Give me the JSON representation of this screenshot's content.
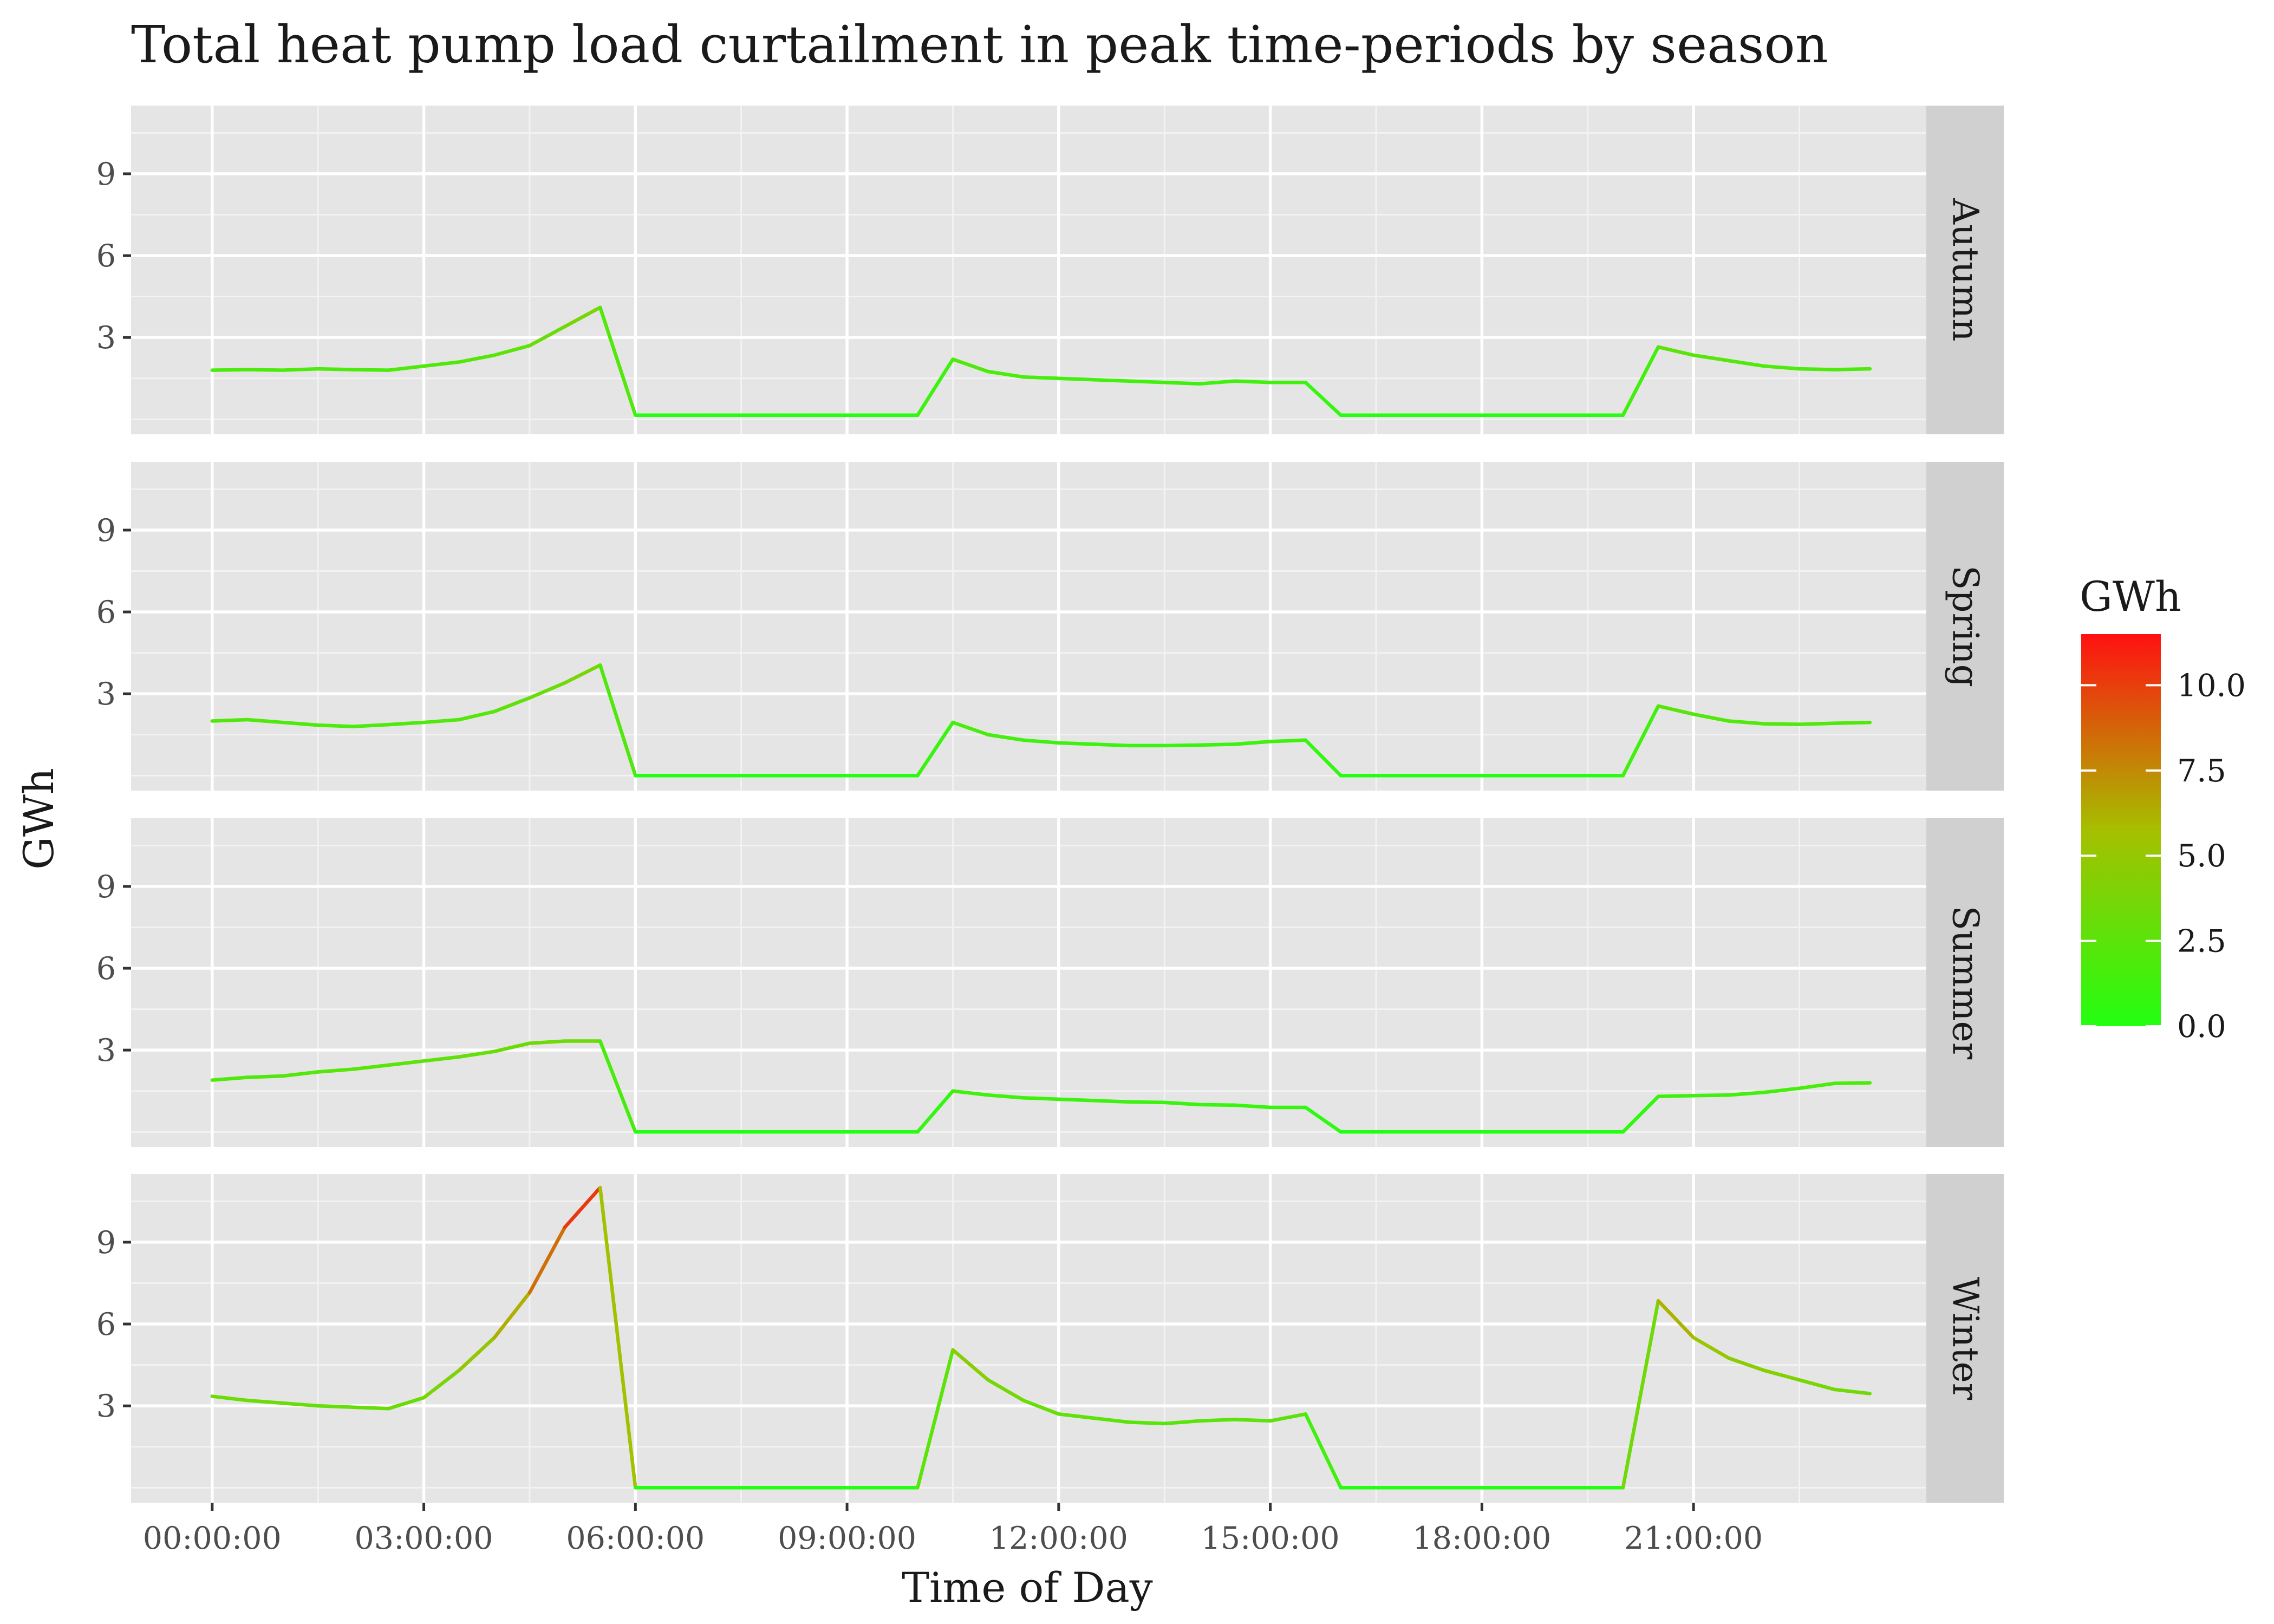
{
  "chart_data": {
    "type": "line",
    "title": "Total heat pump load curtailment in peak time-periods by season",
    "xlabel": "Time of Day",
    "ylabel": "GWh",
    "x_ticks": [
      "00:00:00",
      "03:00:00",
      "06:00:00",
      "09:00:00",
      "12:00:00",
      "15:00:00",
      "18:00:00",
      "21:00:00"
    ],
    "x_tick_hours": [
      0,
      3,
      6,
      9,
      12,
      15,
      18,
      21
    ],
    "xlim_hours": [
      -1.15,
      24.3
    ],
    "y_ticks": [
      3,
      6,
      9
    ],
    "ylim": [
      -0.55,
      11.5
    ],
    "facet_by": "season",
    "grid": true,
    "legend": {
      "title": "GWh",
      "placement": "right",
      "type": "colorbar",
      "range": [
        0,
        11.5
      ],
      "ticks": [
        "0.0",
        "2.5",
        "5.0",
        "7.5",
        "10.0"
      ],
      "tick_values": [
        0,
        2.5,
        5,
        7.5,
        10
      ],
      "color_low": "#22ff11",
      "color_mid": "#a6bf00",
      "color_high": "#ff1111"
    },
    "x_hours": [
      0,
      0.5,
      1,
      1.5,
      2,
      2.5,
      3,
      3.5,
      4,
      4.5,
      5,
      5.5,
      6,
      6.5,
      7,
      7.5,
      8,
      8.5,
      9,
      9.5,
      10,
      10.5,
      11,
      11.5,
      12,
      12.5,
      13,
      13.5,
      14,
      14.5,
      15,
      15.5,
      16,
      16.5,
      17,
      17.5,
      18,
      18.5,
      19,
      19.5,
      20,
      20.5,
      21,
      21.5,
      22,
      22.5,
      23,
      23.5
    ],
    "series": [
      {
        "name": "Autumn",
        "values": [
          1.8,
          1.82,
          1.8,
          1.85,
          1.82,
          1.8,
          1.95,
          2.1,
          2.35,
          2.7,
          3.4,
          4.1,
          0.15,
          0.15,
          0.15,
          0.15,
          0.15,
          0.15,
          0.15,
          0.15,
          0.15,
          2.2,
          1.75,
          1.55,
          1.5,
          1.45,
          1.4,
          1.35,
          1.3,
          1.4,
          1.35,
          1.35,
          0.15,
          0.15,
          0.15,
          0.15,
          0.15,
          0.15,
          0.15,
          0.15,
          0.15,
          2.65,
          2.35,
          2.15,
          1.95,
          1.85,
          1.82,
          1.85
        ]
      },
      {
        "name": "Spring",
        "values": [
          2.0,
          2.05,
          1.95,
          1.85,
          1.8,
          1.87,
          1.95,
          2.05,
          2.35,
          2.85,
          3.4,
          4.05,
          0.0,
          0.0,
          0.0,
          0.0,
          0.0,
          0.0,
          0.0,
          0.0,
          0.0,
          1.95,
          1.5,
          1.3,
          1.2,
          1.15,
          1.1,
          1.1,
          1.12,
          1.15,
          1.25,
          1.3,
          0.0,
          0.0,
          0.0,
          0.0,
          0.0,
          0.0,
          0.0,
          0.0,
          0.0,
          2.55,
          2.25,
          2.0,
          1.9,
          1.88,
          1.92,
          1.95
        ]
      },
      {
        "name": "Summer",
        "values": [
          1.9,
          2.0,
          2.05,
          2.2,
          2.3,
          2.45,
          2.6,
          2.75,
          2.95,
          3.25,
          3.33,
          3.33,
          0.0,
          0.0,
          0.0,
          0.0,
          0.0,
          0.0,
          0.0,
          0.0,
          0.0,
          1.5,
          1.35,
          1.25,
          1.2,
          1.15,
          1.1,
          1.08,
          1.0,
          0.98,
          0.9,
          0.9,
          0.0,
          0.0,
          0.0,
          0.0,
          0.0,
          0.0,
          0.0,
          0.0,
          0.0,
          1.3,
          1.33,
          1.35,
          1.45,
          1.6,
          1.78,
          1.8
        ]
      },
      {
        "name": "Winter",
        "values": [
          3.35,
          3.2,
          3.1,
          3.0,
          2.95,
          2.9,
          3.3,
          4.3,
          5.5,
          7.15,
          9.55,
          11.0,
          0.0,
          0.0,
          0.0,
          0.0,
          0.0,
          0.0,
          0.0,
          0.0,
          0.0,
          5.05,
          3.95,
          3.2,
          2.7,
          2.55,
          2.4,
          2.35,
          2.45,
          2.5,
          2.45,
          2.7,
          0.0,
          0.0,
          0.0,
          0.0,
          0.0,
          0.0,
          0.0,
          0.0,
          0.0,
          6.85,
          5.5,
          4.75,
          4.3,
          3.95,
          3.6,
          3.45
        ]
      }
    ]
  }
}
